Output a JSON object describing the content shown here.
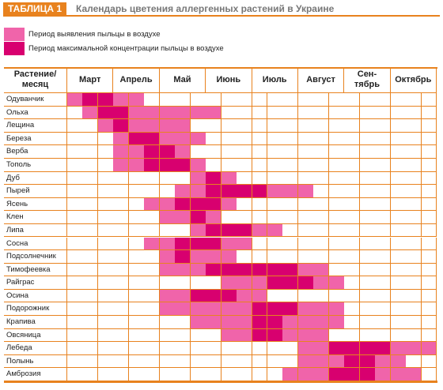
{
  "header": {
    "tag": "ТАБЛИЦА 1",
    "title": "Календарь цветения аллергенных растений в Украине"
  },
  "legend": [
    {
      "label": "Период выявления пыльцы в воздухе",
      "color": "#f064aa"
    },
    {
      "label": "Период максимальной концентрации пыльцы в воздухе",
      "color": "#d8006f"
    }
  ],
  "table": {
    "corner": "Растение/\nмесяц",
    "months": [
      "Март",
      "Апрель",
      "Май",
      "Июнь",
      "Июль",
      "Август",
      "Сен-\nтябрь",
      "Октябрь"
    ],
    "rows": [
      {
        "plant": "Одуванчик",
        "levels": [
          1,
          2,
          2,
          1,
          1,
          0,
          0,
          0,
          0,
          0,
          0,
          0,
          0,
          0,
          0,
          0,
          0,
          0,
          0,
          0,
          0,
          0,
          0,
          0
        ]
      },
      {
        "plant": "Ольха",
        "levels": [
          0,
          1,
          2,
          2,
          1,
          1,
          1,
          1,
          1,
          1,
          0,
          0,
          0,
          0,
          0,
          0,
          0,
          0,
          0,
          0,
          0,
          0,
          0,
          0
        ]
      },
      {
        "plant": "Лещина",
        "levels": [
          0,
          0,
          1,
          2,
          1,
          1,
          1,
          1,
          0,
          0,
          0,
          0,
          0,
          0,
          0,
          0,
          0,
          0,
          0,
          0,
          0,
          0,
          0,
          0
        ]
      },
      {
        "plant": "Береза",
        "levels": [
          0,
          0,
          0,
          1,
          2,
          2,
          1,
          1,
          1,
          0,
          0,
          0,
          0,
          0,
          0,
          0,
          0,
          0,
          0,
          0,
          0,
          0,
          0,
          0
        ]
      },
      {
        "plant": "Верба",
        "levels": [
          0,
          0,
          0,
          1,
          1,
          2,
          2,
          1,
          0,
          0,
          0,
          0,
          0,
          0,
          0,
          0,
          0,
          0,
          0,
          0,
          0,
          0,
          0,
          0
        ]
      },
      {
        "plant": "Тополь",
        "levels": [
          0,
          0,
          0,
          1,
          1,
          2,
          2,
          2,
          1,
          0,
          0,
          0,
          0,
          0,
          0,
          0,
          0,
          0,
          0,
          0,
          0,
          0,
          0,
          0
        ]
      },
      {
        "plant": "Дуб",
        "levels": [
          0,
          0,
          0,
          0,
          0,
          0,
          0,
          0,
          1,
          2,
          1,
          0,
          0,
          0,
          0,
          0,
          0,
          0,
          0,
          0,
          0,
          0,
          0,
          0
        ]
      },
      {
        "plant": "Пырей",
        "levels": [
          0,
          0,
          0,
          0,
          0,
          0,
          0,
          1,
          1,
          2,
          2,
          2,
          2,
          1,
          1,
          1,
          0,
          0,
          0,
          0,
          0,
          0,
          0,
          0
        ]
      },
      {
        "plant": "Ясень",
        "levels": [
          0,
          0,
          0,
          0,
          0,
          1,
          1,
          2,
          2,
          2,
          1,
          0,
          0,
          0,
          0,
          0,
          0,
          0,
          0,
          0,
          0,
          0,
          0,
          0
        ]
      },
      {
        "plant": "Клен",
        "levels": [
          0,
          0,
          0,
          0,
          0,
          0,
          1,
          1,
          2,
          1,
          0,
          0,
          0,
          0,
          0,
          0,
          0,
          0,
          0,
          0,
          0,
          0,
          0,
          0
        ]
      },
      {
        "plant": "Липа",
        "levels": [
          0,
          0,
          0,
          0,
          0,
          0,
          0,
          0,
          1,
          2,
          2,
          2,
          1,
          1,
          0,
          0,
          0,
          0,
          0,
          0,
          0,
          0,
          0,
          0
        ]
      },
      {
        "plant": "Сосна",
        "levels": [
          0,
          0,
          0,
          0,
          0,
          1,
          1,
          2,
          2,
          2,
          1,
          1,
          0,
          0,
          0,
          0,
          0,
          0,
          0,
          0,
          0,
          0,
          0,
          0
        ]
      },
      {
        "plant": "Подсолнечник",
        "levels": [
          0,
          0,
          0,
          0,
          0,
          0,
          1,
          2,
          1,
          1,
          1,
          0,
          0,
          0,
          0,
          0,
          0,
          0,
          0,
          0,
          0,
          0,
          0,
          0
        ]
      },
      {
        "plant": "Тимофеевка",
        "levels": [
          0,
          0,
          0,
          0,
          0,
          0,
          1,
          1,
          1,
          2,
          2,
          2,
          2,
          2,
          2,
          1,
          1,
          0,
          0,
          0,
          0,
          0,
          0,
          0
        ]
      },
      {
        "plant": "Райграс",
        "levels": [
          0,
          0,
          0,
          0,
          0,
          0,
          0,
          0,
          0,
          0,
          1,
          1,
          1,
          2,
          2,
          2,
          1,
          1,
          0,
          0,
          0,
          0,
          0,
          0
        ]
      },
      {
        "plant": "Осина",
        "levels": [
          0,
          0,
          0,
          0,
          0,
          0,
          1,
          1,
          2,
          2,
          2,
          1,
          1,
          0,
          0,
          0,
          0,
          0,
          0,
          0,
          0,
          0,
          0,
          0
        ]
      },
      {
        "plant": "Подорожник",
        "levels": [
          0,
          0,
          0,
          0,
          0,
          0,
          1,
          1,
          1,
          1,
          1,
          1,
          2,
          2,
          2,
          1,
          1,
          1,
          0,
          0,
          0,
          0,
          0,
          0
        ]
      },
      {
        "plant": "Крапива",
        "levels": [
          0,
          0,
          0,
          0,
          0,
          0,
          0,
          0,
          1,
          1,
          1,
          1,
          2,
          2,
          1,
          1,
          1,
          1,
          0,
          0,
          0,
          0,
          0,
          0
        ]
      },
      {
        "plant": "Овсяница",
        "levels": [
          0,
          0,
          0,
          0,
          0,
          0,
          0,
          0,
          0,
          0,
          1,
          1,
          2,
          2,
          1,
          1,
          1,
          0,
          0,
          0,
          0,
          0,
          0,
          0
        ]
      },
      {
        "plant": "Лебеда",
        "levels": [
          0,
          0,
          0,
          0,
          0,
          0,
          0,
          0,
          0,
          0,
          0,
          0,
          0,
          0,
          0,
          1,
          1,
          2,
          2,
          2,
          2,
          1,
          1,
          1
        ]
      },
      {
        "plant": "Полынь",
        "levels": [
          0,
          0,
          0,
          0,
          0,
          0,
          0,
          0,
          0,
          0,
          0,
          0,
          0,
          0,
          0,
          1,
          1,
          1,
          2,
          2,
          1,
          1,
          0,
          0
        ]
      },
      {
        "plant": "Амброзия",
        "levels": [
          0,
          0,
          0,
          0,
          0,
          0,
          0,
          0,
          0,
          0,
          0,
          0,
          0,
          0,
          1,
          1,
          1,
          2,
          2,
          2,
          1,
          1,
          1,
          0
        ]
      }
    ]
  }
}
